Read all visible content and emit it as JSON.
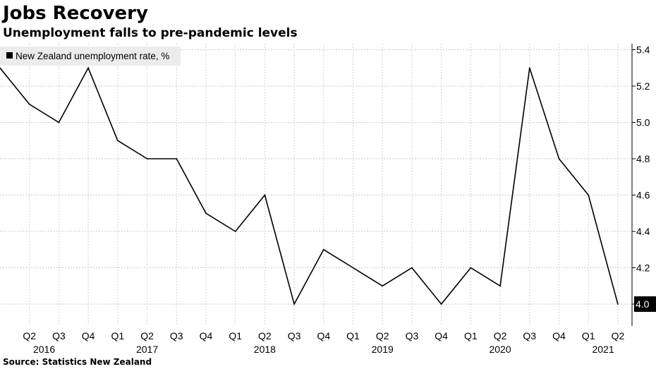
{
  "title": "Jobs Recovery",
  "subtitle": "Unemployment falls to pre-pandemic levels",
  "source": "Source: Statistics New Zealand",
  "chart_data": {
    "type": "line",
    "title": "Jobs Recovery",
    "subtitle": "Unemployment falls to pre-pandemic levels",
    "xlabel": "",
    "ylabel": "",
    "legend": {
      "placement": "top-left",
      "entries": [
        "New Zealand unemployment rate, %"
      ]
    },
    "grid": true,
    "ylim": [
      3.9,
      5.45
    ],
    "yticks": [
      4.0,
      4.2,
      4.4,
      4.6,
      4.8,
      5.0,
      5.2,
      5.4
    ],
    "ytick_labels": [
      "4.0",
      "4.2",
      "4.4",
      "4.6",
      "4.8",
      "5.0",
      "5.2",
      "5.4"
    ],
    "categories": [
      "2016 Q1",
      "2016 Q2",
      "2016 Q3",
      "2016 Q4",
      "2017 Q1",
      "2017 Q2",
      "2017 Q3",
      "2017 Q4",
      "2018 Q1",
      "2018 Q2",
      "2018 Q3",
      "2018 Q4",
      "2019 Q1",
      "2019 Q2",
      "2019 Q3",
      "2019 Q4",
      "2020 Q1",
      "2020 Q2",
      "2020 Q3",
      "2020 Q4",
      "2021 Q1",
      "2021 Q2"
    ],
    "quarter_labels": [
      "",
      "Q2",
      "Q3",
      "Q4",
      "Q1",
      "Q2",
      "Q3",
      "Q4",
      "Q1",
      "Q2",
      "Q3",
      "Q4",
      "Q1",
      "Q2",
      "Q3",
      "Q4",
      "Q1",
      "Q2",
      "Q3",
      "Q4",
      "Q1",
      "Q2"
    ],
    "year_labels": [
      {
        "label": "2016",
        "at_index": 1.5
      },
      {
        "label": "2017",
        "at_index": 5
      },
      {
        "label": "2018",
        "at_index": 9
      },
      {
        "label": "2019",
        "at_index": 13
      },
      {
        "label": "2020",
        "at_index": 17
      },
      {
        "label": "2021",
        "at_index": 20.5
      }
    ],
    "series": [
      {
        "name": "New Zealand unemployment rate, %",
        "color": "#000000",
        "values": [
          5.3,
          5.1,
          5.0,
          5.3,
          4.9,
          4.8,
          4.8,
          4.5,
          4.4,
          4.6,
          4.0,
          4.3,
          4.2,
          4.1,
          4.2,
          4.0,
          4.2,
          4.1,
          5.3,
          4.8,
          4.6,
          4.0
        ]
      }
    ],
    "last_value_label": "4.0"
  }
}
